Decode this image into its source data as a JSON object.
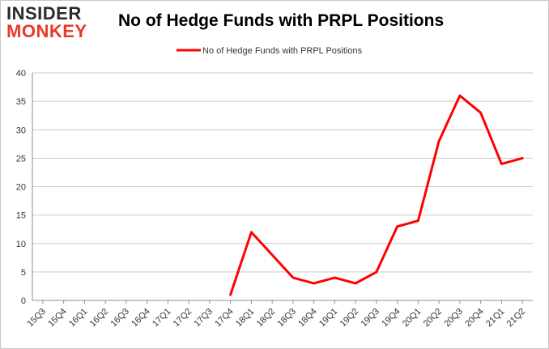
{
  "logo": {
    "line1": "INSIDER",
    "line2": "MONKEY"
  },
  "chart_data": {
    "type": "line",
    "title": "No of Hedge Funds with PRPL Positions",
    "xlabel": "",
    "ylabel": "",
    "categories": [
      "15Q3",
      "15Q4",
      "16Q1",
      "16Q2",
      "16Q3",
      "16Q4",
      "17Q1",
      "17Q2",
      "17Q3",
      "17Q4",
      "18Q1",
      "18Q2",
      "18Q3",
      "18Q4",
      "19Q1",
      "19Q2",
      "19Q3",
      "19Q4",
      "20Q1",
      "20Q2",
      "20Q3",
      "20Q4",
      "21Q1",
      "21Q2"
    ],
    "series": [
      {
        "name": "No of Hedge Funds with PRPL Positions",
        "color": "#ff0000",
        "values": [
          null,
          null,
          null,
          null,
          null,
          null,
          null,
          null,
          null,
          1,
          12,
          8,
          4,
          3,
          4,
          3,
          5,
          13,
          14,
          28,
          36,
          33,
          24,
          25
        ]
      }
    ],
    "ylim": [
      0,
      40
    ],
    "yticks": [
      0,
      5,
      10,
      15,
      20,
      25,
      30,
      35,
      40
    ],
    "grid": true,
    "legend_position": "top-center"
  }
}
